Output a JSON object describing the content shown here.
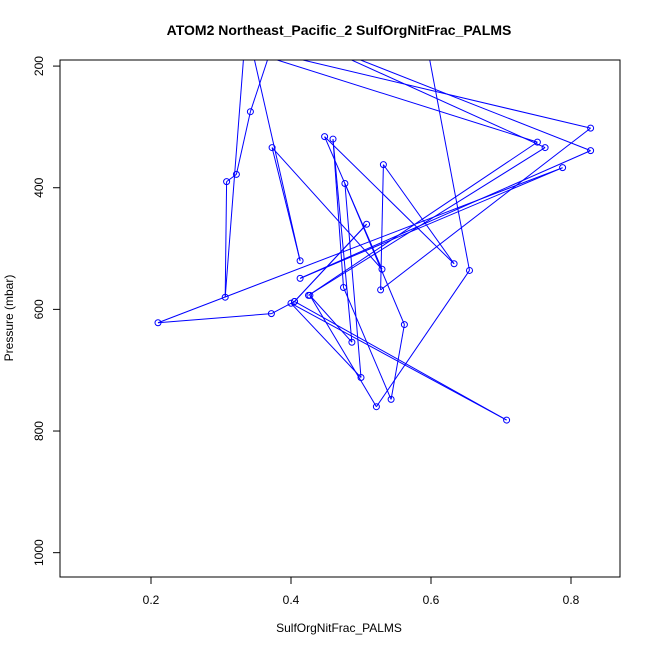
{
  "chart_data": {
    "type": "line",
    "title": "ATOM2 Northeast_Pacific_2 SulfOrgNitFrac_PALMS",
    "xlabel": "SulfOrgNitFrac_PALMS",
    "ylabel": "Pressure (mbar)",
    "xlim": [
      0.07,
      0.87
    ],
    "ylim": [
      1040,
      190
    ],
    "y_inverted": true,
    "x_ticks": [
      "0.2",
      "0.4",
      "0.6",
      "0.8"
    ],
    "y_ticks": [
      "200",
      "400",
      "600",
      "800",
      "1000"
    ],
    "grid": false,
    "series_color": "#0000ff",
    "marker": "open-circle",
    "points": [
      {
        "x": 0.375,
        "y": 160
      },
      {
        "x": 0.342,
        "y": 275
      },
      {
        "x": 0.322,
        "y": 378
      },
      {
        "x": 0.308,
        "y": 390
      },
      {
        "x": 0.306,
        "y": 580
      },
      {
        "x": 0.336,
        "y": 130
      },
      {
        "x": 0.413,
        "y": 520
      },
      {
        "x": 0.373,
        "y": 334
      },
      {
        "x": 0.53,
        "y": 534
      },
      {
        "x": 0.448,
        "y": 316
      },
      {
        "x": 0.633,
        "y": 525
      },
      {
        "x": 0.532,
        "y": 362
      },
      {
        "x": 0.528,
        "y": 568
      },
      {
        "x": 0.828,
        "y": 302
      },
      {
        "x": 0.27,
        "y": 150
      },
      {
        "x": 0.752,
        "y": 325
      },
      {
        "x": 0.425,
        "y": 577
      },
      {
        "x": 0.763,
        "y": 334
      },
      {
        "x": 0.4,
        "y": 145
      },
      {
        "x": 0.828,
        "y": 339
      },
      {
        "x": 0.413,
        "y": 549
      },
      {
        "x": 0.788,
        "y": 367
      },
      {
        "x": 0.21,
        "y": 622
      },
      {
        "x": 0.372,
        "y": 607
      },
      {
        "x": 0.405,
        "y": 587
      },
      {
        "x": 0.508,
        "y": 460
      },
      {
        "x": 0.405,
        "y": 587
      },
      {
        "x": 0.708,
        "y": 782
      },
      {
        "x": 0.4,
        "y": 590
      },
      {
        "x": 0.5,
        "y": 712
      },
      {
        "x": 0.477,
        "y": 393
      },
      {
        "x": 0.562,
        "y": 625
      },
      {
        "x": 0.543,
        "y": 748
      },
      {
        "x": 0.475,
        "y": 564
      },
      {
        "x": 0.46,
        "y": 320
      },
      {
        "x": 0.487,
        "y": 654
      },
      {
        "x": 0.427,
        "y": 577
      },
      {
        "x": 0.522,
        "y": 760
      },
      {
        "x": 0.655,
        "y": 536
      },
      {
        "x": 0.59,
        "y": 140
      }
    ]
  }
}
